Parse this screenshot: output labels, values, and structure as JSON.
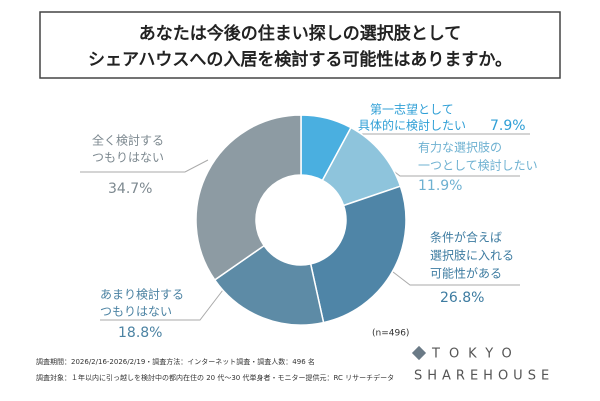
{
  "chart_data": {
    "type": "pie",
    "title": [
      "あなたは今後の住まい探しの選択肢として",
      "シェアハウスへの入居を検討する可能性はありますか。"
    ],
    "categories": [
      [
        "第一志望として",
        "具体的に検討したい"
      ],
      [
        "有力な選択肢の",
        "一つとして検討したい"
      ],
      [
        "条件が合えば",
        "選択肢に入れる",
        "可能性がある"
      ],
      [
        "あまり検討する",
        "つもりはない"
      ],
      [
        "全く検討する",
        "つもりはない"
      ]
    ],
    "values": [
      7.9,
      11.9,
      26.8,
      18.8,
      34.7
    ],
    "value_labels": [
      "7.9%",
      "11.9%",
      "26.8%",
      "18.8%",
      "34.7%"
    ],
    "colors": [
      "#4aafe0",
      "#8ec4dc",
      "#4f85a7",
      "#5d8ba6",
      "#8d9ba3"
    ],
    "label_colors": [
      "#2f9fd6",
      "#6eb1d1",
      "#3e7ca1",
      "#4c83a3",
      "#7d8990"
    ],
    "sample": "(n=496)",
    "notes": [
      "調査期間：2026/2/16-2026/2/19・調査方法：インターネット調査・調査人数：496 名",
      "調査対象：１年以内に引っ越しを検討中の都内在住の 20 代～30 代単身者・モニター提供元：RC リサーチデータ"
    ],
    "logo": [
      "TOKYO",
      "SHAREHOUSE"
    ]
  }
}
